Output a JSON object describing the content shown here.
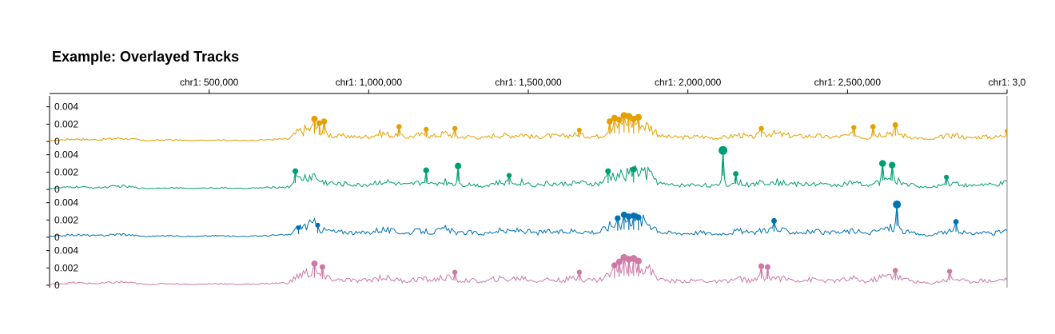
{
  "title": "Example: Overlayed Tracks",
  "chart_data": {
    "type": "line",
    "x_axis": {
      "tick_labels": [
        "chr1: 500,000",
        "chr1: 1,000,000",
        "chr1: 1,500,000",
        "chr1: 2,000,000",
        "chr1: 2,500,000",
        "chr1: 3,0"
      ],
      "tick_positions": [
        500000,
        1000000,
        1500000,
        2000000,
        2500000,
        3000000
      ],
      "range": [
        1,
        3000000
      ]
    },
    "y_axis": {
      "tick_labels": [
        "0.004",
        "0.002",
        "0"
      ],
      "ticks": [
        0.004,
        0.002,
        0
      ],
      "range": [
        0,
        0.0048
      ]
    },
    "grid": false,
    "legend": "none",
    "base_series": {
      "x": [
        1,
        75000,
        150000,
        225000,
        300000,
        375000,
        450000,
        525000,
        600000,
        675000,
        750000,
        780000,
        800000,
        830000,
        850000,
        880000,
        900000,
        930000,
        960000,
        1000000,
        1040000,
        1080000,
        1120000,
        1160000,
        1200000,
        1240000,
        1280000,
        1320000,
        1360000,
        1400000,
        1440000,
        1480000,
        1520000,
        1560000,
        1600000,
        1640000,
        1680000,
        1720000,
        1760000,
        1800000,
        1840000,
        1880000,
        1920000,
        1960000,
        2000000,
        2040000,
        2080000,
        2120000,
        2160000,
        2200000,
        2240000,
        2280000,
        2320000,
        2360000,
        2400000,
        2440000,
        2480000,
        2520000,
        2560000,
        2600000,
        2640000,
        2680000,
        2720000,
        2760000,
        2800000,
        2840000,
        2880000,
        2920000,
        2960000,
        3000000
      ],
      "y": [
        0.0001,
        0.0003,
        0.0002,
        0.0004,
        0.0001,
        0.0002,
        0.0001,
        0.0002,
        0.0001,
        0.0002,
        0.0003,
        0.0012,
        0.0014,
        0.0016,
        0.0009,
        0.0008,
        0.0006,
        0.0007,
        0.0005,
        0.0006,
        0.001,
        0.0007,
        0.0005,
        0.0008,
        0.0006,
        0.001,
        0.0005,
        0.0006,
        0.0004,
        0.0008,
        0.0007,
        0.0009,
        0.0005,
        0.0007,
        0.0006,
        0.0008,
        0.0007,
        0.0006,
        0.0015,
        0.0017,
        0.0022,
        0.0018,
        0.0006,
        0.0005,
        0.0005,
        0.0006,
        0.0004,
        0.0005,
        0.0008,
        0.0005,
        0.001,
        0.0009,
        0.0007,
        0.0006,
        0.0007,
        0.0005,
        0.0006,
        0.0008,
        0.0004,
        0.0009,
        0.0012,
        0.0007,
        0.0004,
        0.0002,
        0.0006,
        0.0008,
        0.0004,
        0.0006,
        0.0005,
        0.0008
      ]
    },
    "series": [
      {
        "color": "#E69F00",
        "peaks": [
          [
            830000,
            0.0026
          ],
          [
            845000,
            0.0021
          ],
          [
            860000,
            0.0023
          ],
          [
            1095000,
            0.0017
          ],
          [
            1180000,
            0.0014
          ],
          [
            1270000,
            0.0015
          ],
          [
            1660000,
            0.0013
          ],
          [
            1755000,
            0.0023
          ],
          [
            1770000,
            0.0027
          ],
          [
            1785000,
            0.0025
          ],
          [
            1800000,
            0.003
          ],
          [
            1815000,
            0.0029
          ],
          [
            1830000,
            0.0026
          ],
          [
            1845000,
            0.0028
          ],
          [
            2230000,
            0.0015
          ],
          [
            2520000,
            0.0016
          ],
          [
            2580000,
            0.0017
          ],
          [
            2650000,
            0.0019
          ],
          [
            3000000,
            0.0012
          ]
        ]
      },
      {
        "color": "#009E73",
        "peaks": [
          [
            770000,
            0.0021
          ],
          [
            1180000,
            0.0022
          ],
          [
            1280000,
            0.0027
          ],
          [
            1440000,
            0.0016
          ],
          [
            1750000,
            0.0021
          ],
          [
            1830000,
            0.0023
          ],
          [
            2110000,
            0.0045
          ],
          [
            2150000,
            0.0018
          ],
          [
            2610000,
            0.003
          ],
          [
            2640000,
            0.0028
          ],
          [
            2810000,
            0.0014
          ]
        ]
      },
      {
        "color": "#0072B2",
        "peaks": [
          [
            780000,
            0.0011
          ],
          [
            840000,
            0.0014
          ],
          [
            1780000,
            0.0022
          ],
          [
            1800000,
            0.0026
          ],
          [
            1815000,
            0.0024
          ],
          [
            1830000,
            0.0025
          ],
          [
            1845000,
            0.0023
          ],
          [
            2270000,
            0.0019
          ],
          [
            2655000,
            0.0038
          ],
          [
            2840000,
            0.0018
          ]
        ]
      },
      {
        "color": "#CC79A7",
        "peaks": [
          [
            830000,
            0.0025
          ],
          [
            855000,
            0.0021
          ],
          [
            1270000,
            0.0015
          ],
          [
            1660000,
            0.0015
          ],
          [
            1770000,
            0.0023
          ],
          [
            1785000,
            0.0027
          ],
          [
            1800000,
            0.0032
          ],
          [
            1815000,
            0.003
          ],
          [
            1830000,
            0.0031
          ],
          [
            1845000,
            0.0028
          ],
          [
            2230000,
            0.0022
          ],
          [
            2250000,
            0.0021
          ],
          [
            2650000,
            0.0017
          ],
          [
            2820000,
            0.0016
          ]
        ]
      }
    ]
  }
}
